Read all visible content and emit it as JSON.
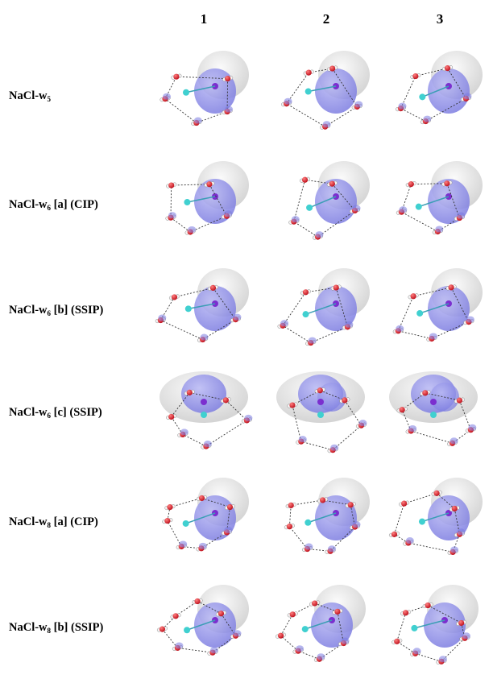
{
  "columns": [
    "1",
    "2",
    "3"
  ],
  "rows": [
    {
      "prefix": "NaCl-w",
      "sub": "5",
      "suffix": ""
    },
    {
      "prefix": "NaCl-w",
      "sub": "6",
      "suffix": " [a] (CIP)"
    },
    {
      "prefix": "NaCl-w",
      "sub": "6",
      "suffix": " [b] (SSIP)"
    },
    {
      "prefix": "NaCl-w",
      "sub": "6",
      "suffix": " [c] (SSIP)"
    },
    {
      "prefix": "NaCl-w",
      "sub": "8",
      "suffix": " [a] (CIP)"
    },
    {
      "prefix": "NaCl-w",
      "sub": "8",
      "suffix": " [b] (SSIP)"
    }
  ],
  "colors": {
    "orbital_blue": "#7a7ae0",
    "orbital_grey": "#e2e2e2",
    "oxygen": "#c0121e",
    "hydrogen": "#f4f4f4",
    "sodium": "#40d0d0",
    "chlorine": "#7b2fcf"
  }
}
